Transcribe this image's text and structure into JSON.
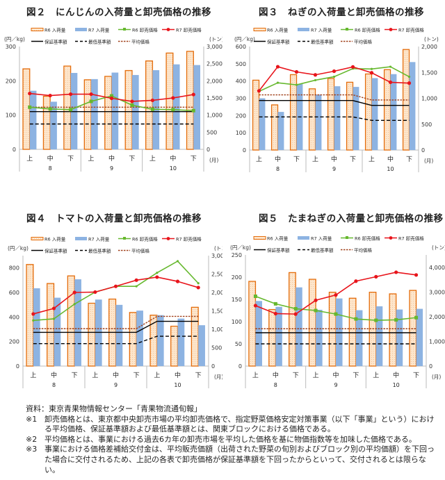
{
  "legend": {
    "r6_volume": "R6 入荷量",
    "r7_volume": "R7 入荷量",
    "r6_price": "R6 卸売価格",
    "r7_price": "R7 卸売価格",
    "guarantee": "保証基準額",
    "minimum": "最低基準額",
    "average": "平均価格"
  },
  "colors": {
    "r6_bar_fill": "#fde6cc",
    "r6_bar_stroke": "#e46c0a",
    "r7_bar_fill": "#8db3e2",
    "r6_price": "#66b82e",
    "r7_price": "#e8141b",
    "guarantee": "#000000",
    "minimum": "#000000",
    "average": "#a0401a"
  },
  "chart_data": [
    {
      "title": "図２　にんじんの入荷量と卸売価格の推移",
      "type": "bar+line",
      "left_axis": {
        "unit": "(円／kg)",
        "range": [
          0,
          300
        ],
        "ticks": [
          0,
          100,
          200,
          300
        ]
      },
      "right_axis": {
        "unit": "(トン)",
        "range": [
          0,
          3000
        ],
        "ticks": [
          0,
          500,
          1000,
          1500,
          2000,
          2500,
          3000
        ]
      },
      "x_unit": "(月)",
      "categories": [
        "上",
        "中",
        "下",
        "上",
        "中",
        "下",
        "上",
        "中",
        "下"
      ],
      "months": [
        "8",
        "9",
        "10"
      ],
      "r6_marker": "square",
      "series": {
        "r6_volume": [
          2350,
          1550,
          2430,
          2030,
          2130,
          2300,
          2580,
          2810,
          2860
        ],
        "r7_volume": [
          1710,
          1390,
          2230,
          2050,
          2240,
          2170,
          2310,
          2480,
          2460
        ],
        "r6_price": [
          123,
          118,
          116,
          140,
          156,
          129,
          117,
          116,
          113
        ],
        "r7_price": [
          163,
          157,
          161,
          161,
          149,
          140,
          143,
          150,
          160
        ],
        "guarantee": [
          110,
          110,
          110,
          110,
          110,
          110,
          110,
          110,
          110
        ],
        "minimum": [
          74,
          74,
          74,
          74,
          74,
          74,
          74,
          74,
          74
        ],
        "average": [
          123,
          123,
          123,
          123,
          123,
          123,
          123,
          123,
          123
        ]
      }
    },
    {
      "title": "図３　ねぎの入荷量と卸売価格の推移",
      "type": "bar+line",
      "left_axis": {
        "unit": "(円／kg)",
        "range": [
          0,
          600
        ],
        "ticks": [
          0,
          100,
          200,
          300,
          400,
          500,
          600
        ]
      },
      "right_axis": {
        "unit": "(トン)",
        "range": [
          0,
          2000
        ],
        "ticks": [
          0,
          500,
          1000,
          1500,
          2000
        ]
      },
      "x_unit": "(月)",
      "categories": [
        "上",
        "中",
        "下",
        "上",
        "中",
        "下",
        "上",
        "中",
        "下"
      ],
      "months": [
        "8",
        "9",
        "10"
      ],
      "r6_marker": "dot",
      "series": {
        "r6_volume": [
          1350,
          873,
          1457,
          1183,
          1383,
          1310,
          1470,
          1553,
          1943
        ],
        "r7_volume": [
          1000,
          737,
          1277,
          1073,
          1233,
          1220,
          1390,
          1467,
          1700
        ],
        "r6_price": [
          340,
          390,
          378,
          405,
          425,
          472,
          470,
          483,
          425
        ],
        "r7_price": [
          343,
          483,
          453,
          436,
          457,
          482,
          448,
          393,
          388
        ],
        "guarantee": [
          287,
          287,
          287,
          287,
          287,
          287,
          259,
          259,
          259
        ],
        "minimum": [
          192,
          192,
          192,
          192,
          192,
          192,
          172,
          172,
          172
        ],
        "average": [
          320,
          320,
          320,
          320,
          320,
          320,
          290,
          290,
          290
        ]
      }
    },
    {
      "title": "図４　トマトの入荷量と卸売価格の推移",
      "type": "bar+line",
      "left_axis": {
        "unit": "(円／kg)",
        "range": [
          0,
          900
        ],
        "ticks": [
          0,
          200,
          400,
          600,
          800
        ]
      },
      "right_axis": {
        "unit": "(トン)",
        "range": [
          0,
          3000
        ],
        "ticks": [
          0,
          500,
          1000,
          1500,
          2000,
          2500,
          3000
        ]
      },
      "x_unit": "(月)",
      "categories": [
        "上",
        "中",
        "下",
        "上",
        "中",
        "下",
        "上",
        "中",
        "下"
      ],
      "months": [
        "8",
        "9",
        "10"
      ],
      "r6_marker": "dot",
      "series": {
        "r6_volume": [
          2760,
          2243,
          2450,
          1707,
          1820,
          1457,
          1383,
          1083,
          1597
        ],
        "r7_volume": [
          2113,
          1857,
          2357,
          1807,
          1663,
          1507,
          1383,
          1290,
          1110
        ],
        "r6_price": [
          372,
          385,
          505,
          603,
          650,
          650,
          760,
          855,
          675
        ],
        "r7_price": [
          425,
          470,
          600,
          603,
          650,
          700,
          725,
          690,
          640
        ],
        "guarantee": [
          275,
          275,
          275,
          275,
          275,
          275,
          365,
          365,
          365
        ],
        "minimum": [
          183,
          183,
          183,
          183,
          183,
          183,
          243,
          243,
          243
        ],
        "average": [
          305,
          305,
          305,
          305,
          305,
          305,
          405,
          405,
          405
        ]
      }
    },
    {
      "title": "図５　たまねぎの入荷量と卸売価格の推移",
      "type": "bar+line",
      "left_axis": {
        "unit": "(円／kg)",
        "range": [
          0,
          250
        ],
        "ticks": [
          0,
          50,
          100,
          150,
          200,
          250
        ]
      },
      "right_axis": {
        "unit": "(トン)",
        "range": [
          0,
          4500
        ],
        "ticks": [
          0,
          1000,
          2000,
          3000,
          4000
        ]
      },
      "x_unit": "(月)",
      "categories": [
        "上",
        "中",
        "下",
        "上",
        "中",
        "下",
        "上",
        "中",
        "下"
      ],
      "months": [
        "8",
        "9",
        "10"
      ],
      "r6_marker": "square",
      "series": {
        "r6_volume": [
          3430,
          2290,
          3785,
          3514,
          2990,
          2748,
          2990,
          2925,
          3065
        ],
        "r7_volume": [
          2636,
          2400,
          3187,
          2280,
          2738,
          2262,
          2420,
          2290,
          2318
        ],
        "r6_price": [
          157,
          140,
          129,
          125,
          117,
          106,
          103,
          104,
          109
        ],
        "r7_price": [
          136,
          118,
          117,
          148,
          160,
          191,
          201,
          211,
          205
        ],
        "guarantee": [
          75,
          75,
          75,
          75,
          75,
          75,
          75,
          75,
          75
        ],
        "minimum": [
          50,
          50,
          50,
          50,
          50,
          50,
          50,
          50,
          50
        ],
        "average": [
          84,
          84,
          84,
          84,
          84,
          84,
          84,
          84,
          84
        ]
      }
    }
  ],
  "notes": [
    {
      "mark": "資料：",
      "text": "東京青果物情報センター「青果物流通旬報」"
    },
    {
      "mark": "※1",
      "text": "卸売価格とは、東京都中央卸売市場の平均卸売価格で、指定野菜価格安定対策事業（以下「事業」という）における平均価格、保証基準額および最低基準額とは、関東ブロックにおける価格である。"
    },
    {
      "mark": "※2",
      "text": "平均価格とは、事業における過去6カ年の卸売市場を平均した価格を基に物価指数等を加味した価格である。"
    },
    {
      "mark": "※3",
      "text": "事業における価格差補給交付金は、平均販売価額（出荷された野菜の旬別およびブロック別の平均価額）を下回った場合に交付されるため、上記の各表で卸売価格が保証基準額を下回ったからといって、交付されるとは限らない。"
    }
  ]
}
